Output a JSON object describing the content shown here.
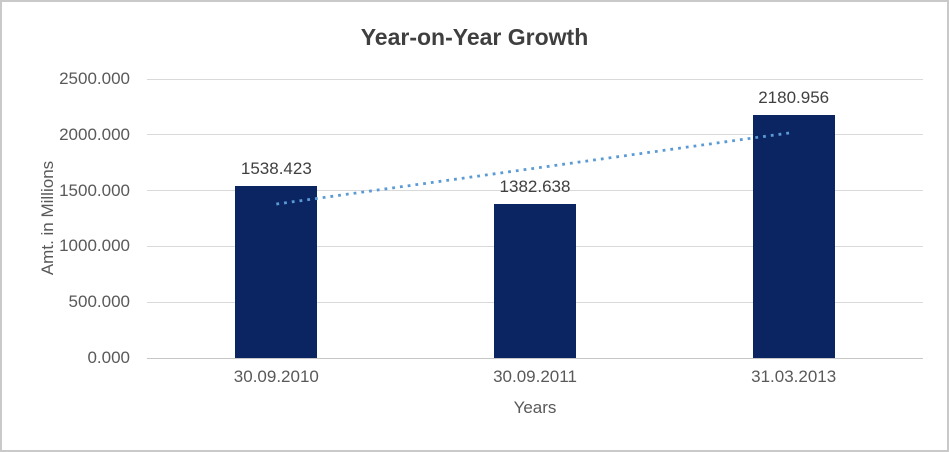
{
  "frame": {
    "background": "#ffffff",
    "border_color": "#c9c9c9"
  },
  "chart_data": {
    "type": "bar",
    "title": "Year-on-Year Growth",
    "xlabel": "Years",
    "ylabel": "Amt. in Millions",
    "categories": [
      "30.09.2010",
      "30.09.2011",
      "31.03.2013"
    ],
    "values": [
      1538.423,
      1382.638,
      2180.956
    ],
    "value_labels": [
      "1538.423",
      "1382.638",
      "2180.956"
    ],
    "ylim": [
      0,
      2500
    ],
    "ytick_values": [
      0,
      500,
      1000,
      1500,
      2000,
      2500
    ],
    "ytick_labels": [
      "0.000",
      "500.000",
      "1000.000",
      "1500.000",
      "2000.000",
      "2500.000"
    ],
    "grid": true,
    "legend": "none",
    "bar_color": "#0b2562",
    "gridline_color": "#d9d9d9",
    "axis_line_color": "#c6c6c6",
    "title_color": "#3f3f3f",
    "label_color": "#404040",
    "tick_color": "#595959",
    "trendline": {
      "type": "linear",
      "style": "dotted",
      "color": "#5b9bd5"
    }
  }
}
